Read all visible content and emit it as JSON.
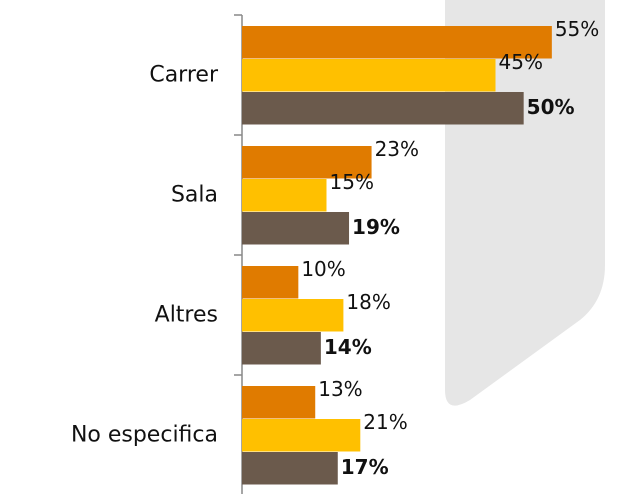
{
  "chart_data": {
    "type": "bar",
    "orientation": "horizontal",
    "categories": [
      "Carrer",
      "Sala",
      "Altres",
      "No especifica"
    ],
    "series": [
      {
        "color": "#e07b00",
        "values": [
          55,
          23,
          10,
          13
        ],
        "value_labels": [
          "55%",
          "23%",
          "10%",
          "13%"
        ]
      },
      {
        "color": "#ffc000",
        "values": [
          45,
          15,
          18,
          21
        ],
        "value_labels": [
          "45%",
          "15%",
          "18%",
          "21%"
        ]
      },
      {
        "color": "#6b5a4c",
        "values": [
          50,
          19,
          14,
          17
        ],
        "value_labels": [
          "50%",
          "19%",
          "14%",
          "17%"
        ]
      }
    ],
    "xlim": [
      0,
      60
    ]
  }
}
